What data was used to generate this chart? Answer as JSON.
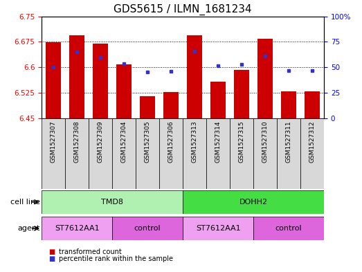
{
  "title": "GDS5615 / ILMN_1681234",
  "samples": [
    "GSM1527307",
    "GSM1527308",
    "GSM1527309",
    "GSM1527304",
    "GSM1527305",
    "GSM1527306",
    "GSM1527313",
    "GSM1527314",
    "GSM1527315",
    "GSM1527310",
    "GSM1527311",
    "GSM1527312"
  ],
  "transformed_counts": [
    6.674,
    6.695,
    6.67,
    6.608,
    6.516,
    6.527,
    6.695,
    6.558,
    6.592,
    6.683,
    6.53,
    6.53
  ],
  "percentile_ranks": [
    0.5,
    0.65,
    0.595,
    0.535,
    0.455,
    0.462,
    0.655,
    0.515,
    0.53,
    0.61,
    0.468,
    0.468
  ],
  "y_min": 6.45,
  "y_max": 6.75,
  "y_ticks": [
    6.45,
    6.525,
    6.6,
    6.675,
    6.75
  ],
  "y_right_ticks": [
    0,
    25,
    50,
    75,
    100
  ],
  "bar_color": "#cc0000",
  "dot_color": "#3333cc",
  "cell_line_groups": [
    {
      "label": "TMD8",
      "start": 0,
      "end": 6,
      "color": "#b0f0b0"
    },
    {
      "label": "DOHH2",
      "start": 6,
      "end": 12,
      "color": "#44dd44"
    }
  ],
  "agent_groups": [
    {
      "label": "ST7612AA1",
      "start": 0,
      "end": 3,
      "color": "#f0a0f0"
    },
    {
      "label": "control",
      "start": 3,
      "end": 6,
      "color": "#dd66dd"
    },
    {
      "label": "ST7612AA1",
      "start": 6,
      "end": 9,
      "color": "#f0a0f0"
    },
    {
      "label": "control",
      "start": 9,
      "end": 12,
      "color": "#dd66dd"
    }
  ],
  "legend_red": "transformed count",
  "legend_blue": "percentile rank within the sample",
  "bg_color": "#d8d8d8",
  "plot_bg": "#ffffff",
  "title_fontsize": 11,
  "tick_fontsize": 7.5,
  "sample_fontsize": 6.5,
  "label_fontsize": 8,
  "row_label_fontsize": 8
}
